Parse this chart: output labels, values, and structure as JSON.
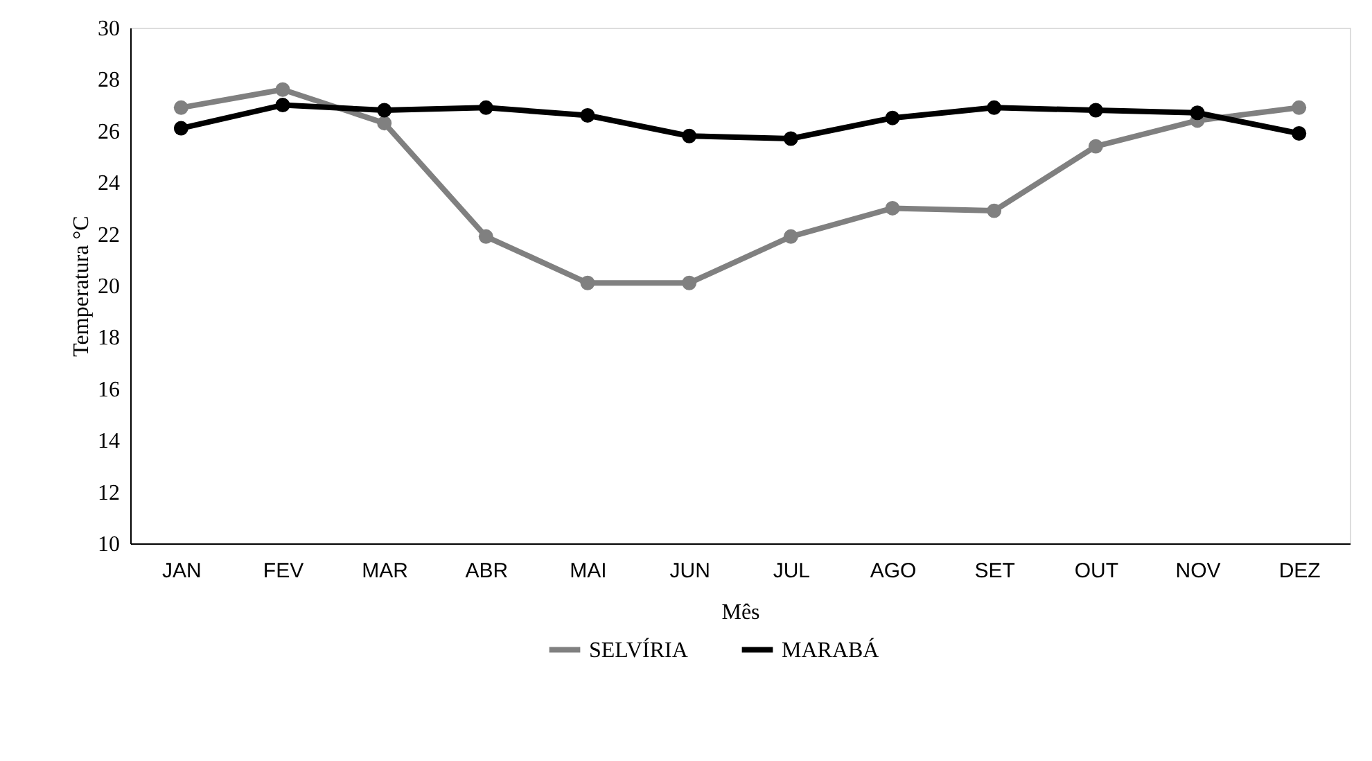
{
  "chart_data": {
    "type": "line",
    "xlabel": "Mês",
    "ylabel": "Temperatura °C",
    "categories": [
      "JAN",
      "FEV",
      "MAR",
      "ABR",
      "MAI",
      "JUN",
      "JUL",
      "AGO",
      "SET",
      "OUT",
      "NOV",
      "DEZ"
    ],
    "series": [
      {
        "name": "SELVÍRIA",
        "color": "#808080",
        "values": [
          26.9,
          27.6,
          26.3,
          21.9,
          20.1,
          20.1,
          21.9,
          23.0,
          22.9,
          25.4,
          26.4,
          26.9
        ]
      },
      {
        "name": "MARABÁ",
        "color": "#000000",
        "values": [
          26.1,
          27.0,
          26.8,
          26.9,
          26.6,
          25.8,
          25.7,
          26.5,
          26.9,
          26.8,
          26.7,
          25.9
        ]
      }
    ],
    "ylim": [
      10,
      30
    ],
    "yticks": [
      10,
      12,
      14,
      16,
      18,
      20,
      22,
      24,
      26,
      28,
      30
    ],
    "grid": false,
    "legend": "bottom",
    "marker": "circle",
    "line_style": "solid"
  }
}
